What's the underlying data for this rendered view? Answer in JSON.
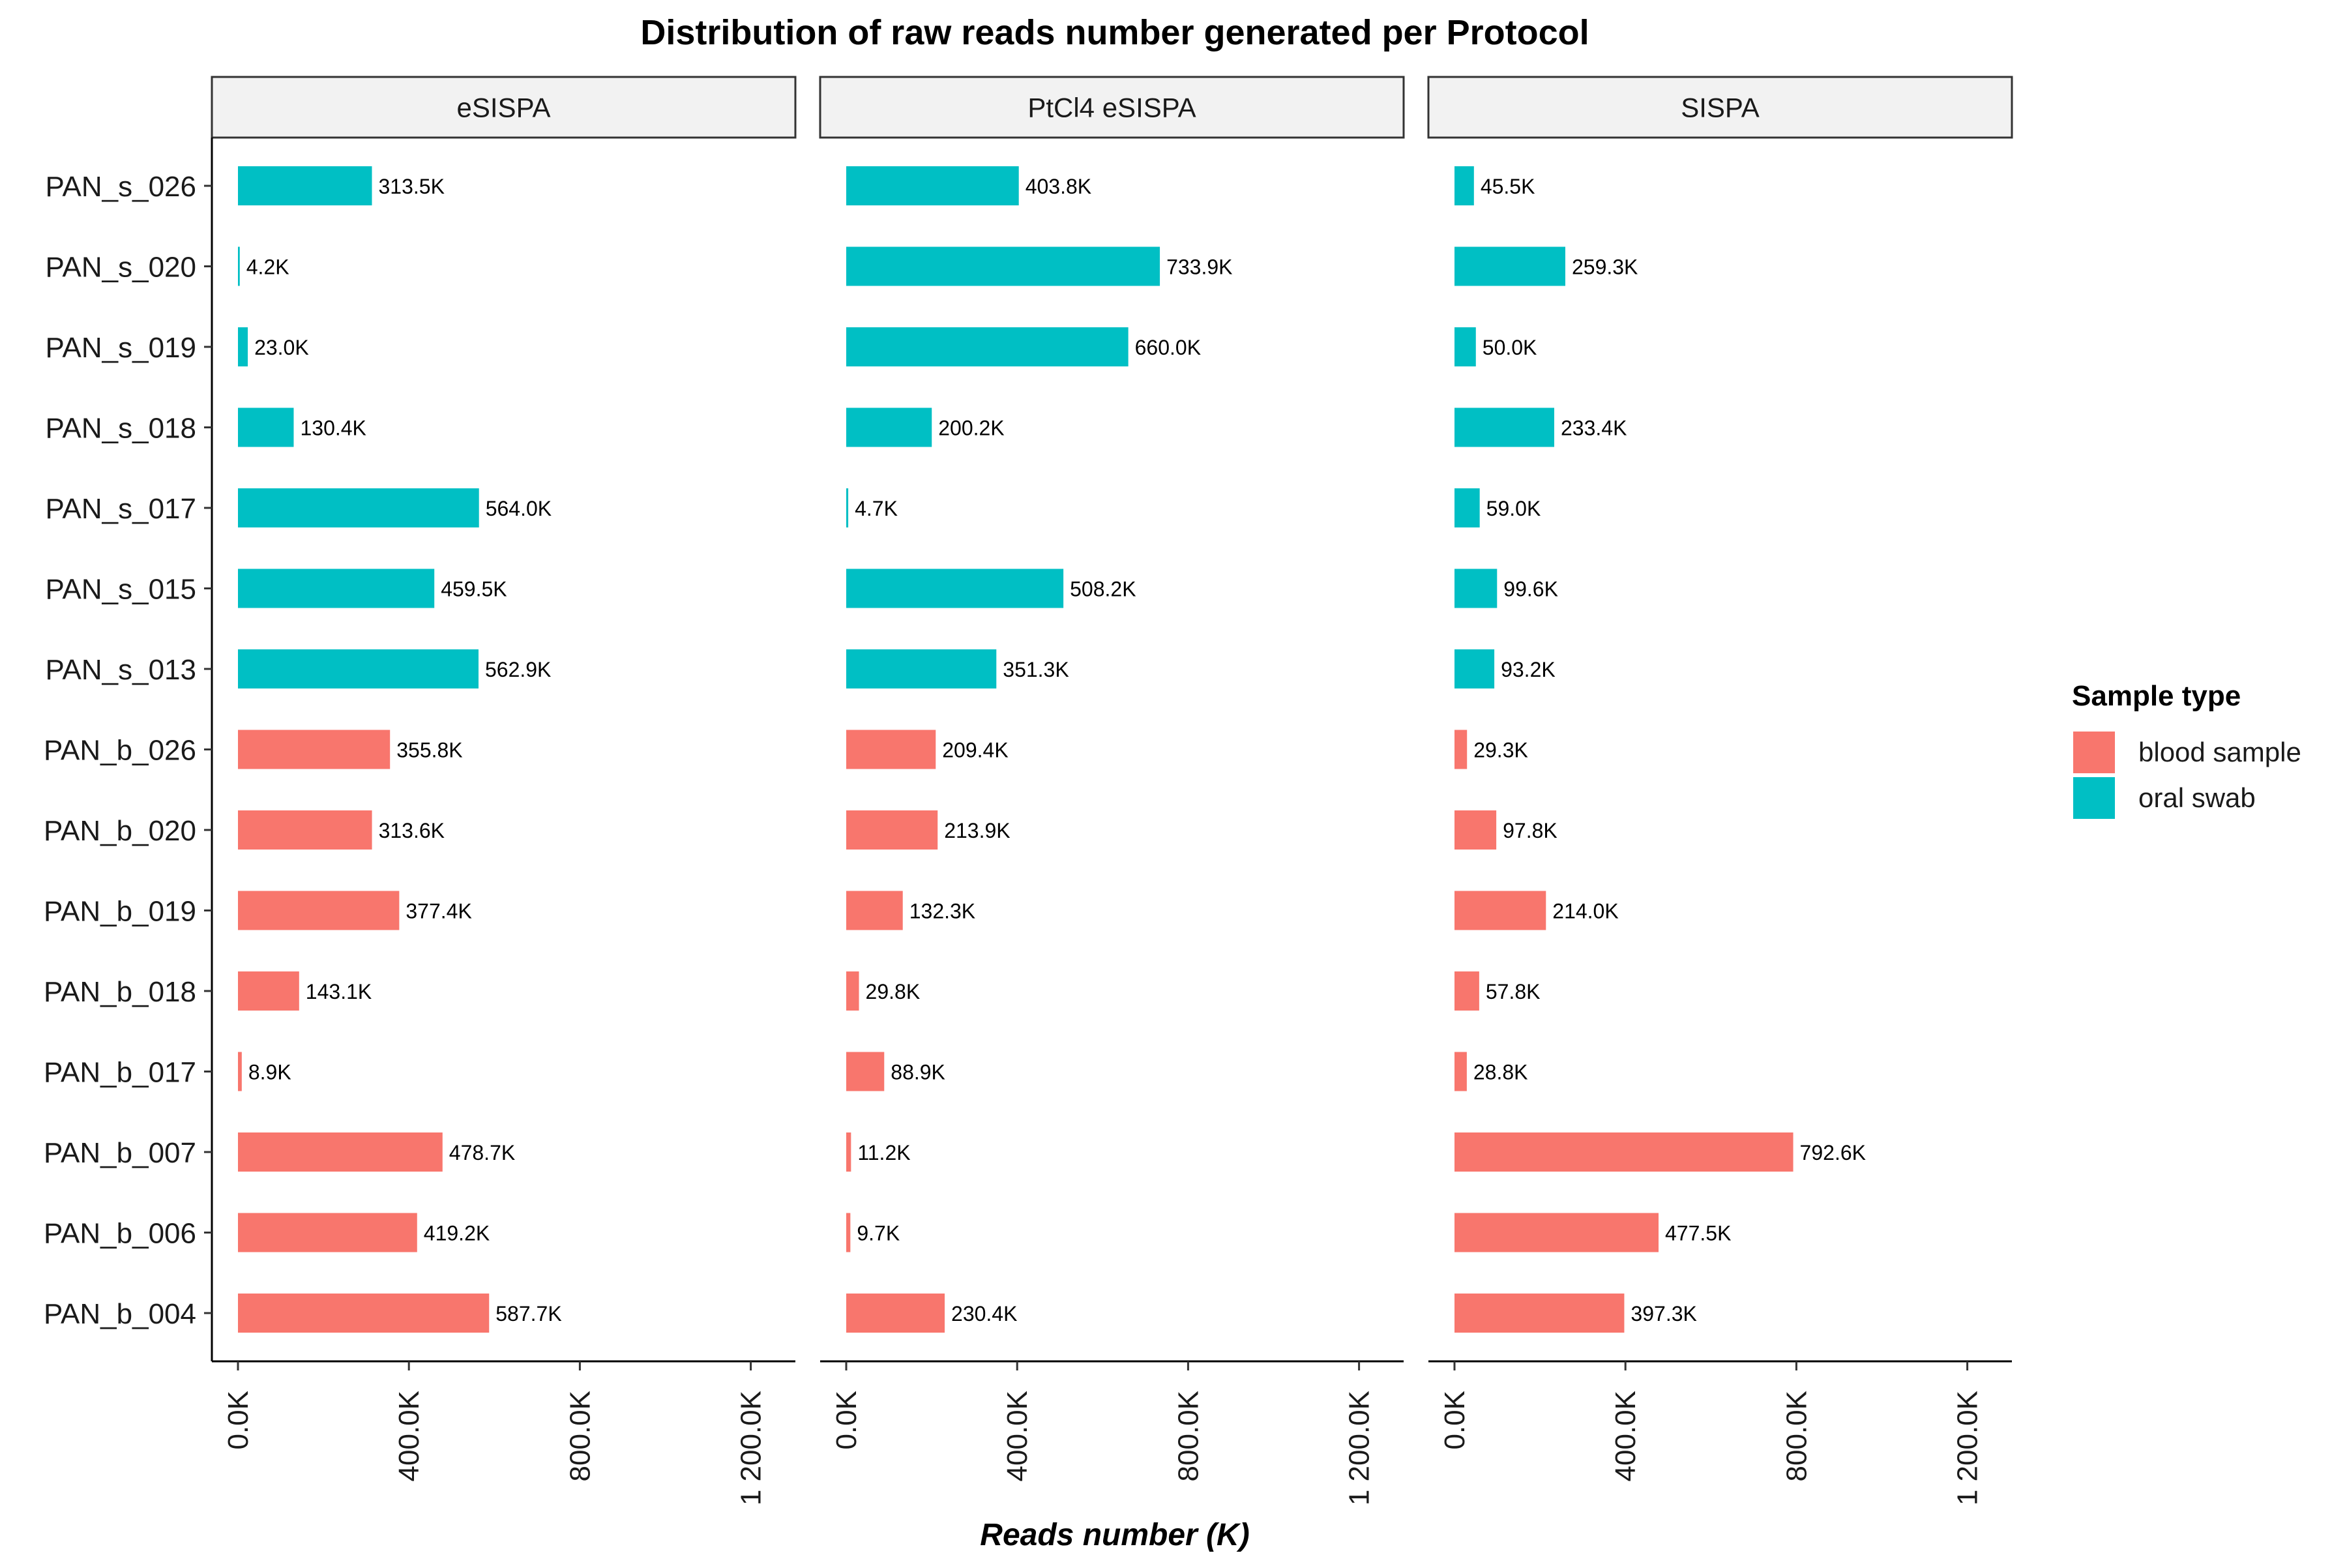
{
  "chart_data": {
    "type": "bar",
    "orientation": "horizontal",
    "title": "Distribution of raw reads number generated per Protocol",
    "xlabel": "Reads number (K)",
    "ylabel": "",
    "xlim": [
      0,
      1200
    ],
    "x_ticks": [
      0,
      400,
      800,
      1200
    ],
    "x_tick_labels": [
      "0.0K",
      "400.0K",
      "800.0K",
      "1 200.0K"
    ],
    "categories": [
      "PAN_s_026",
      "PAN_s_020",
      "PAN_s_019",
      "PAN_s_018",
      "PAN_s_017",
      "PAN_s_015",
      "PAN_s_013",
      "PAN_b_026",
      "PAN_b_020",
      "PAN_b_019",
      "PAN_b_018",
      "PAN_b_017",
      "PAN_b_007",
      "PAN_b_006",
      "PAN_b_004"
    ],
    "sample_type": [
      "oral swab",
      "oral swab",
      "oral swab",
      "oral swab",
      "oral swab",
      "oral swab",
      "oral swab",
      "blood sample",
      "blood sample",
      "blood sample",
      "blood sample",
      "blood sample",
      "blood sample",
      "blood sample",
      "blood sample"
    ],
    "panels": [
      {
        "name": "eSISPA",
        "values": [
          313.5,
          4.2,
          23.0,
          130.4,
          564.0,
          459.5,
          562.9,
          355.8,
          313.6,
          377.4,
          143.1,
          8.9,
          478.7,
          419.2,
          587.7
        ],
        "labels": [
          "313.5K",
          "4.2K",
          "23.0K",
          "130.4K",
          "564.0K",
          "459.5K",
          "562.9K",
          "355.8K",
          "313.6K",
          "377.4K",
          "143.1K",
          "8.9K",
          "478.7K",
          "419.2K",
          "587.7K"
        ]
      },
      {
        "name": "PtCl4 eSISPA",
        "values": [
          403.8,
          733.9,
          660.0,
          200.2,
          4.7,
          508.2,
          351.3,
          209.4,
          213.9,
          132.3,
          29.8,
          88.9,
          11.2,
          9.7,
          230.4
        ],
        "labels": [
          "403.8K",
          "733.9K",
          "660.0K",
          "200.2K",
          "4.7K",
          "508.2K",
          "351.3K",
          "209.4K",
          "213.9K",
          "132.3K",
          "29.8K",
          "88.9K",
          "11.2K",
          "9.7K",
          "230.4K"
        ]
      },
      {
        "name": "SISPA",
        "values": [
          45.5,
          259.3,
          50.0,
          233.4,
          59.0,
          99.6,
          93.2,
          29.3,
          97.8,
          214.0,
          57.8,
          28.8,
          792.6,
          477.5,
          397.3
        ],
        "labels": [
          "45.5K",
          "259.3K",
          "50.0K",
          "233.4K",
          "59.0K",
          "99.6K",
          "93.2K",
          "29.3K",
          "97.8K",
          "214.0K",
          "57.8K",
          "28.8K",
          "792.6K",
          "477.5K",
          "397.3K"
        ]
      }
    ],
    "legend": {
      "title": "Sample type",
      "placement": "right",
      "items": [
        {
          "name": "blood sample",
          "color": "#F8766D"
        },
        {
          "name": "oral swab",
          "color": "#00BFC4"
        }
      ]
    },
    "grid": false
  }
}
